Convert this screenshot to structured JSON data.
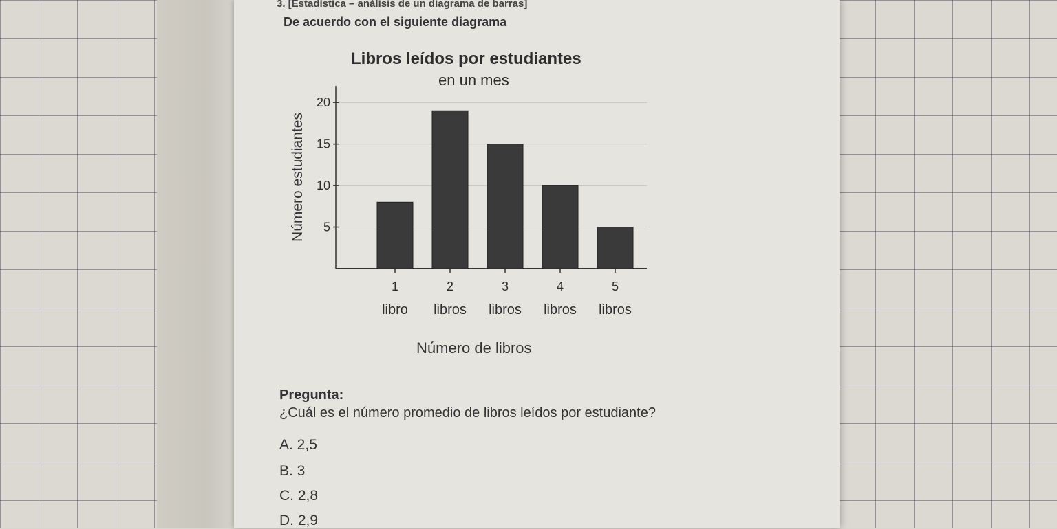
{
  "header": {
    "section": "3. [Estadística – análisis de un diagrama de barras]",
    "instruction": "De acuerdo con el siguiente diagrama"
  },
  "chart_data": {
    "type": "bar",
    "title": "Libros leídos por estudiantes",
    "subtitle": "en un mes",
    "ylabel": "Número estudiantes",
    "xlabel": "Número de libros",
    "categories": [
      "1 libro",
      "2 libros",
      "3 libros",
      "4 libros",
      "5 libros"
    ],
    "category_numbers": [
      "1",
      "2",
      "3",
      "4",
      "5"
    ],
    "category_words": [
      "libro",
      "libros",
      "libros",
      "libros",
      "libros"
    ],
    "values": [
      8,
      19,
      15,
      10,
      5
    ],
    "yticks": [
      "5",
      "10",
      "15",
      "20"
    ],
    "ytick_values": [
      5,
      10,
      15,
      20
    ],
    "ylim": [
      0,
      22
    ],
    "grid": true,
    "bar_color": "#3a3a3a"
  },
  "question": {
    "label": "Pregunta:",
    "text": "¿Cuál es el número promedio de libros leídos por estudiante?",
    "options": [
      "A. 2,5",
      "B. 3",
      "C. 2,8",
      "D. 2,9"
    ]
  }
}
